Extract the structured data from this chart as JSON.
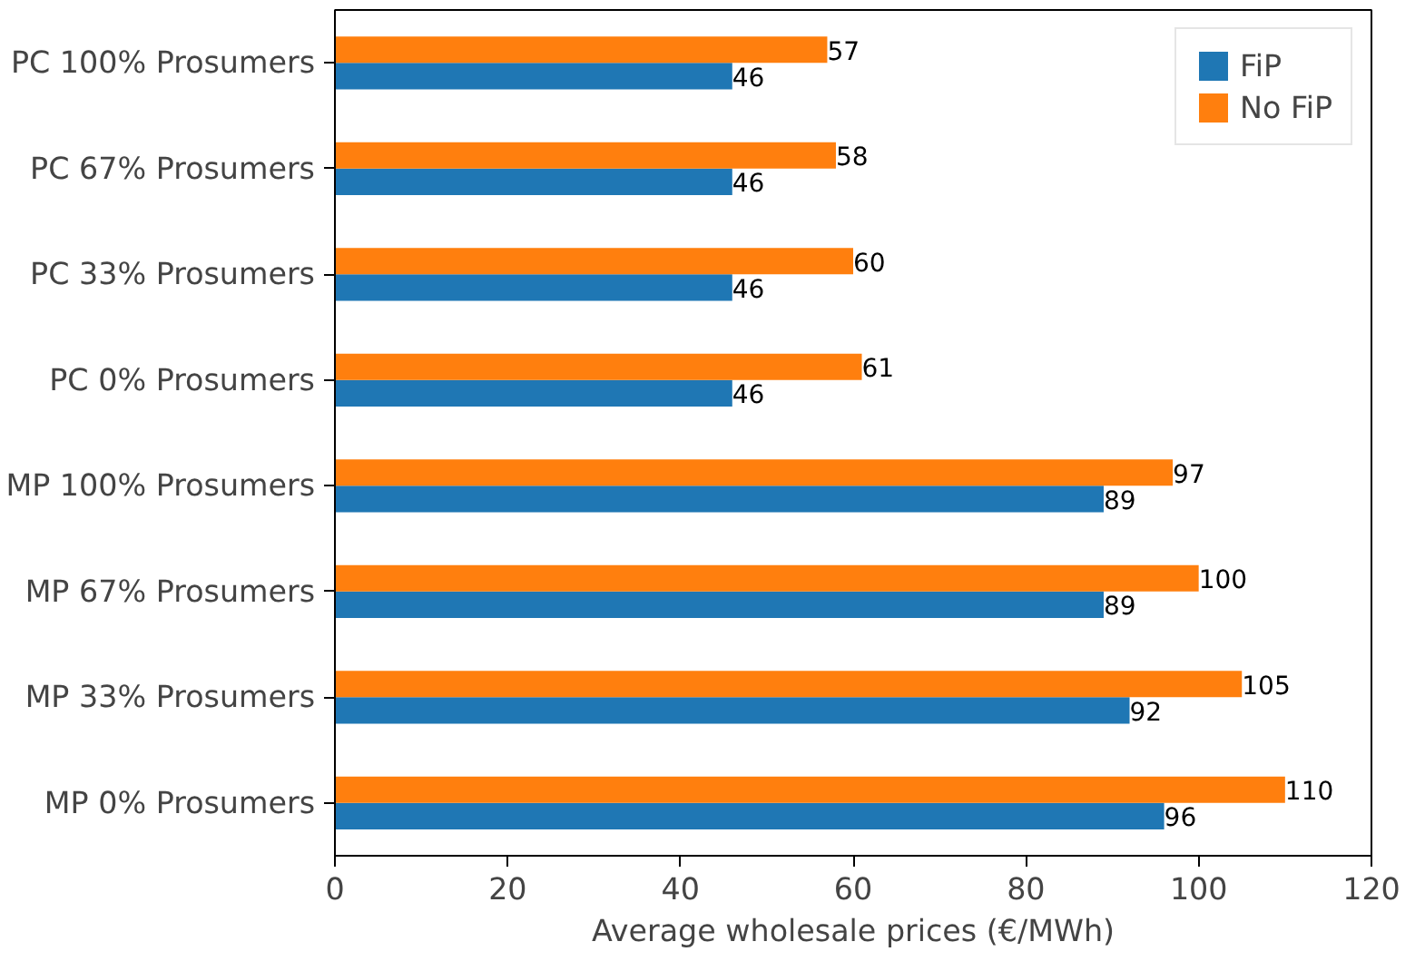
{
  "chart_data": {
    "type": "bar",
    "orientation": "horizontal",
    "categories": [
      "PC 100% Prosumers",
      "PC 67% Prosumers",
      "PC 33% Prosumers",
      "PC 0% Prosumers",
      "MP 100% Prosumers",
      "MP 67% Prosumers",
      "MP 33% Prosumers",
      "MP 0% Prosumers"
    ],
    "series": [
      {
        "name": "FiP",
        "color": "#1f77b4",
        "values": [
          46,
          46,
          46,
          46,
          89,
          89,
          92,
          96
        ]
      },
      {
        "name": "No FiP",
        "color": "#ff7f0e",
        "values": [
          57,
          58,
          60,
          61,
          97,
          100,
          105,
          110
        ]
      }
    ],
    "xlabel": "Average wholesale prices (€/MWh)",
    "xlim": [
      0,
      120
    ],
    "xticks": [
      0,
      20,
      40,
      60,
      80,
      100,
      120
    ],
    "data_labels": true,
    "legend": "top right",
    "grid": false
  }
}
